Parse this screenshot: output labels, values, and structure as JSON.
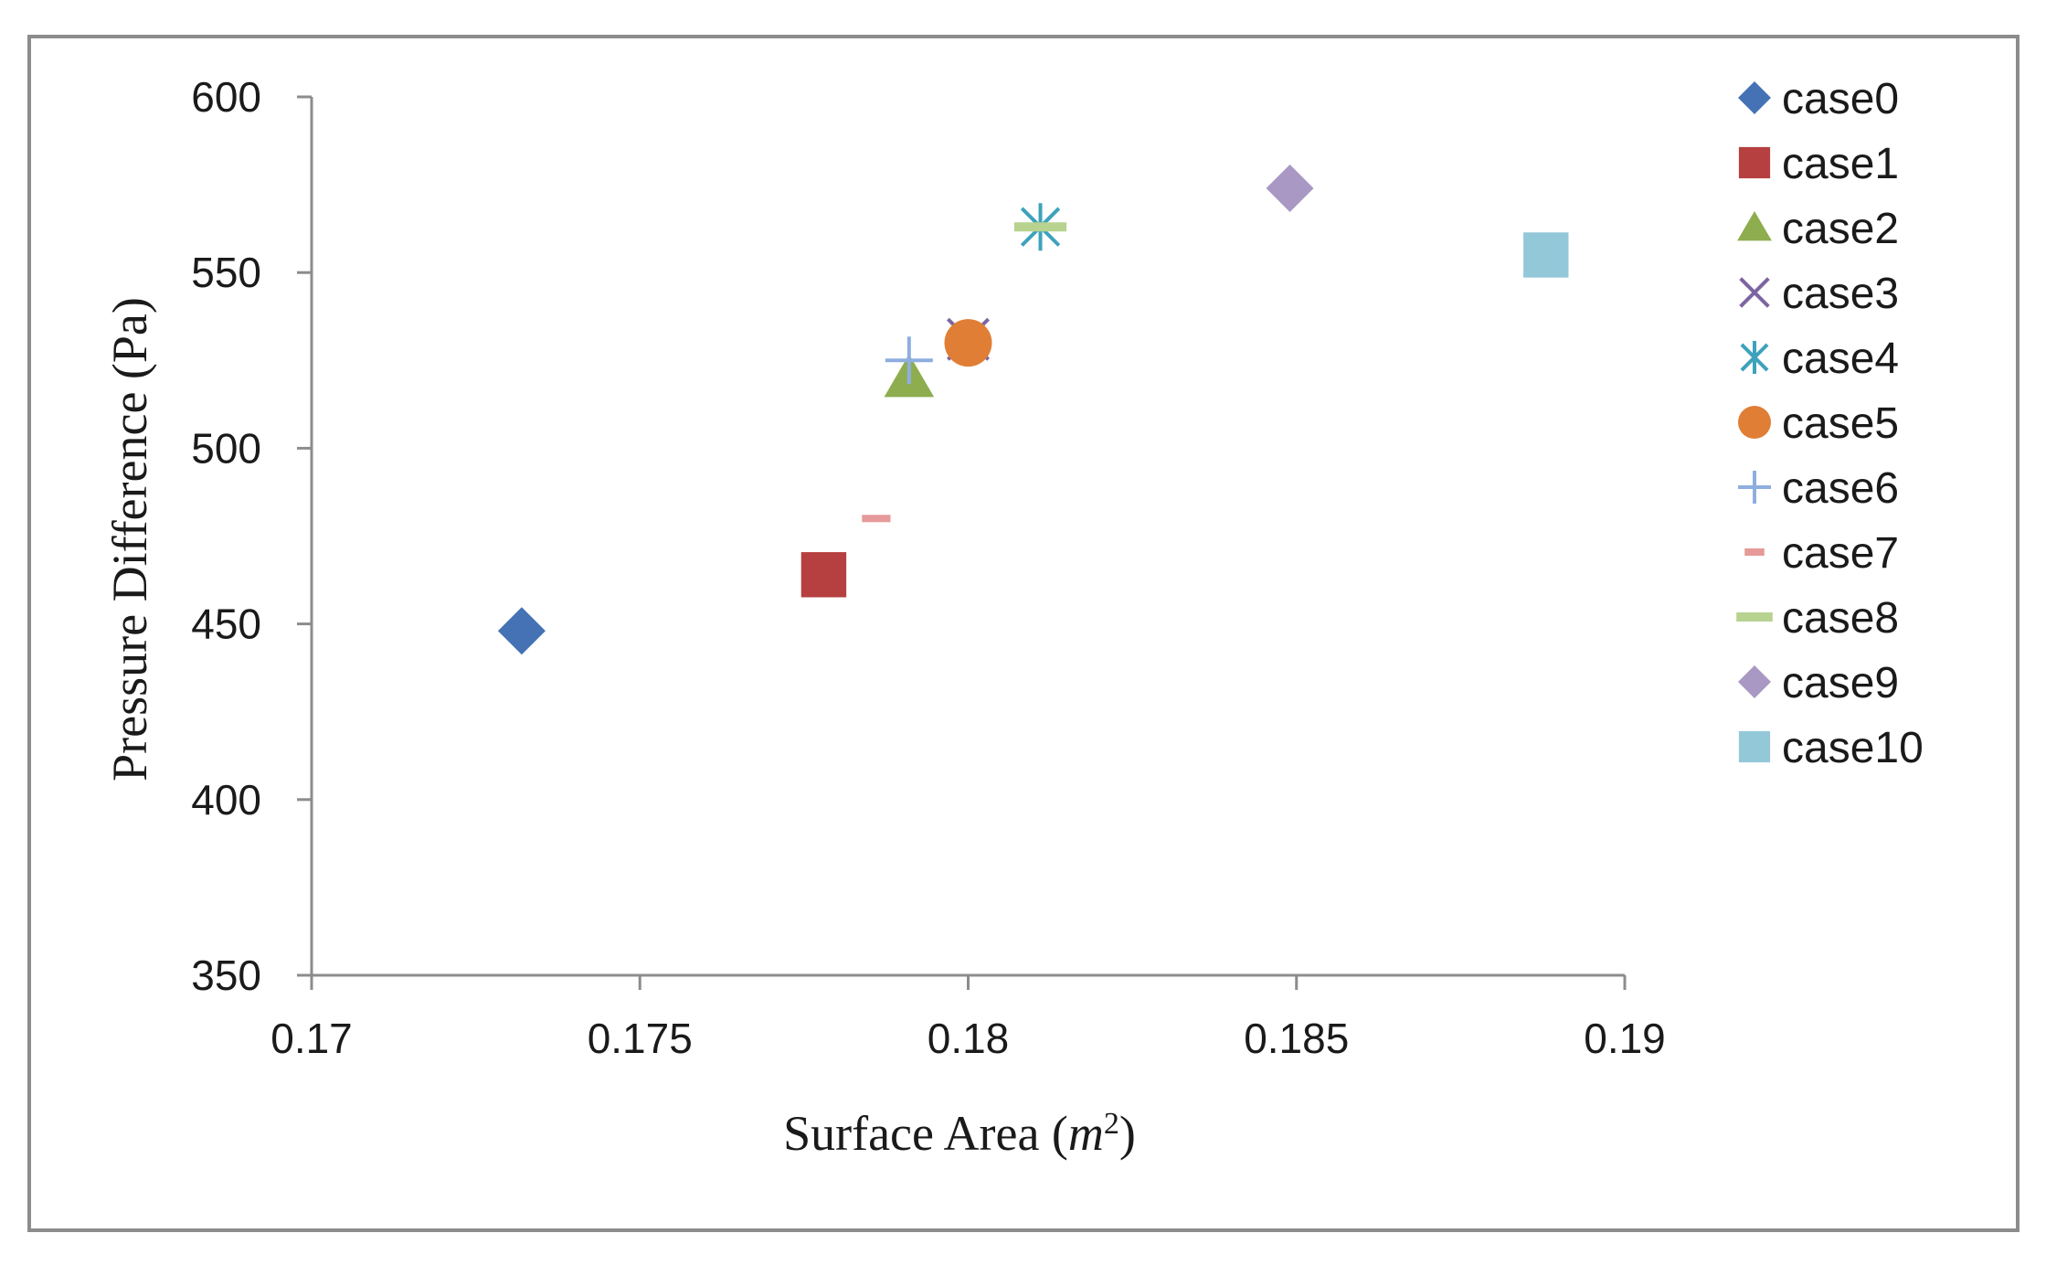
{
  "chart_data": {
    "type": "scatter",
    "title": "",
    "xlabel": "Surface Area (",
    "xlabel_var": "m",
    "xlabel_sup": "2",
    "xlabel_end": ")",
    "ylabel": "Pressure Difference (Pa)",
    "xlim": [
      0.17,
      0.19
    ],
    "ylim": [
      350,
      600
    ],
    "x_ticks": [
      0.17,
      0.175,
      0.18,
      0.185,
      0.19
    ],
    "x_tick_labels": [
      "0.17",
      "0.175",
      "0.18",
      "0.185",
      "0.19"
    ],
    "y_ticks": [
      350,
      400,
      450,
      500,
      550,
      600
    ],
    "y_tick_labels": [
      "350",
      "400",
      "450",
      "500",
      "550",
      "600"
    ],
    "grid": false,
    "legend_position": "right",
    "series": [
      {
        "name": "case0",
        "marker": "diamond",
        "color": "#4472b4",
        "x": 0.1732,
        "y": 448
      },
      {
        "name": "case1",
        "marker": "square",
        "color": "#b5403f",
        "x": 0.1778,
        "y": 464
      },
      {
        "name": "case2",
        "marker": "triangle",
        "color": "#8ead4e",
        "x": 0.1791,
        "y": 520
      },
      {
        "name": "case3",
        "marker": "x",
        "color": "#7d64a2",
        "x": 0.18,
        "y": 531
      },
      {
        "name": "case4",
        "marker": "asterisk",
        "color": "#3ea2bc",
        "x": 0.1811,
        "y": 563
      },
      {
        "name": "case5",
        "marker": "circle",
        "color": "#e07e35",
        "x": 0.18,
        "y": 530
      },
      {
        "name": "case6",
        "marker": "plus",
        "color": "#8eaee0",
        "x": 0.1791,
        "y": 525
      },
      {
        "name": "case7",
        "marker": "dash",
        "color": "#e59a99",
        "x": 0.1786,
        "y": 480
      },
      {
        "name": "case8",
        "marker": "longdash",
        "color": "#b7d38f",
        "x": 0.1811,
        "y": 563
      },
      {
        "name": "case9",
        "marker": "diamond",
        "color": "#a898c3",
        "x": 0.1849,
        "y": 574
      },
      {
        "name": "case10",
        "marker": "square",
        "color": "#93c8d9",
        "x": 0.1888,
        "y": 555
      }
    ]
  },
  "colors": {
    "axis": "#8c8c8c",
    "frame": "#8c8c8c"
  }
}
